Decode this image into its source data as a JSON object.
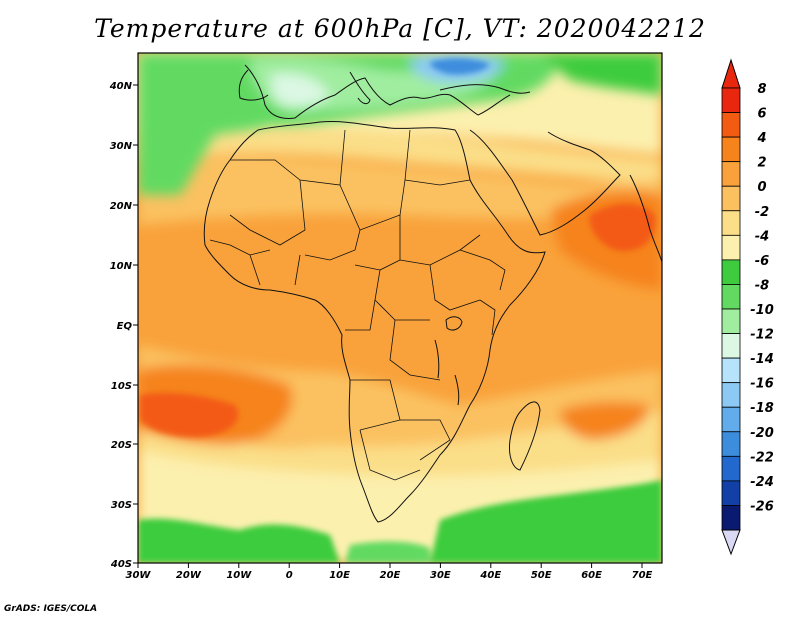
{
  "title": "Temperature at 600hPa [C], VT: 2020042212",
  "credit": "GrADS: IGES/COLA",
  "map": {
    "lon_labels": [
      "30W",
      "20W",
      "10W",
      "0",
      "10E",
      "20E",
      "30E",
      "40E",
      "50E",
      "60E",
      "70E"
    ],
    "lat_labels": [
      "40N",
      "30N",
      "20N",
      "10N",
      "EQ",
      "10S",
      "20S",
      "30S",
      "40S"
    ]
  },
  "colorbar": {
    "labels": [
      "8",
      "6",
      "4",
      "2",
      "0",
      "-2",
      "-4",
      "-6",
      "-8",
      "-10",
      "-12",
      "-14",
      "-16",
      "-18",
      "-20",
      "-22",
      "-24",
      "-26"
    ],
    "colors": [
      "#e8270e",
      "#f35a12",
      "#f6831c",
      "#f9a23b",
      "#fbc160",
      "#fbde88",
      "#fcf0ae",
      "#3ecc3e",
      "#62da62",
      "#a0eda0",
      "#dcf8e4",
      "#b6e2fb",
      "#8cc9f4",
      "#62acec",
      "#3d8ddd",
      "#2368cc",
      "#1240a6",
      "#0a1a70"
    ]
  },
  "palette": {
    "land_border": "#111111",
    "frame": "#000000"
  }
}
